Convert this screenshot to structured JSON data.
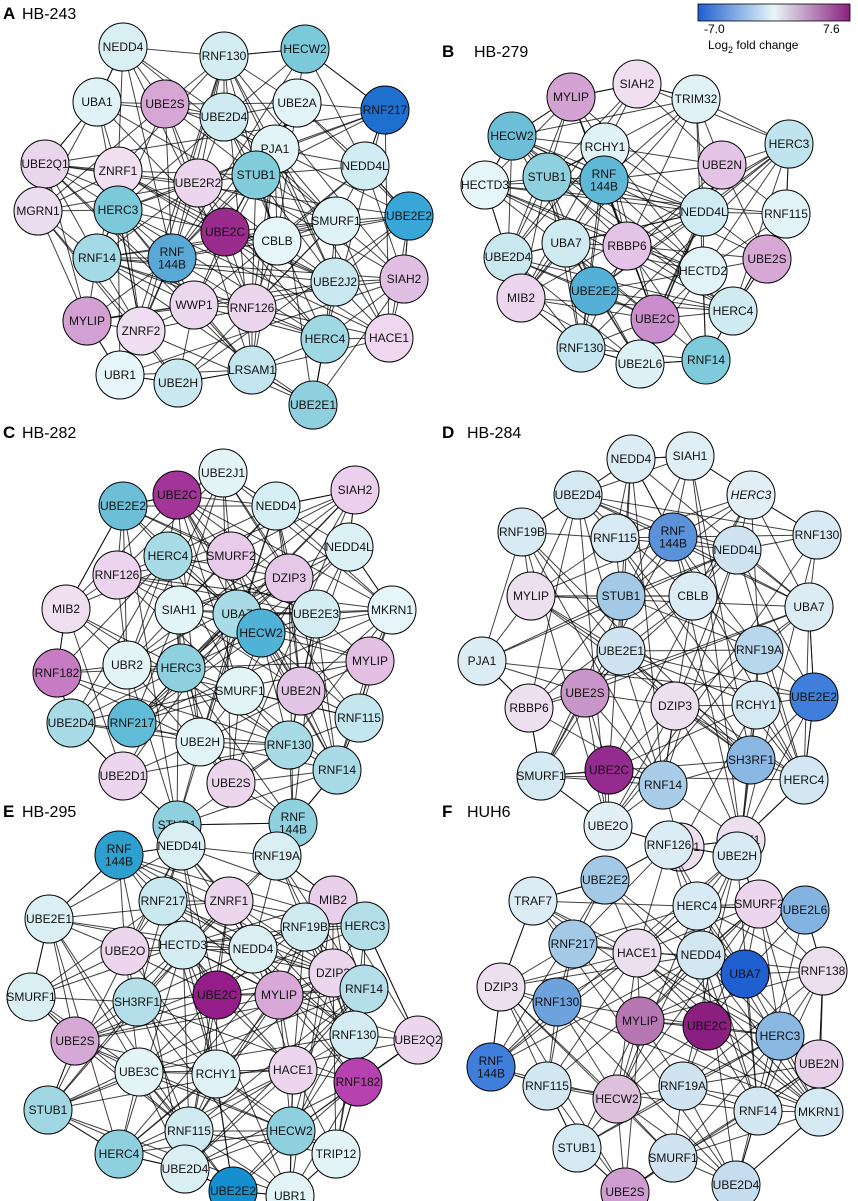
{
  "colorbar": {
    "min": "-7.0",
    "max": "7.6",
    "label_prefix": "Log",
    "label_sub": "2",
    "label_suffix": " fold change",
    "colors": [
      "#1f5fcf",
      "#e8f6f8",
      "#8a1f7f"
    ]
  },
  "panels": [
    {
      "letter": "A",
      "title": "HB-243",
      "nodes": [
        {
          "label": "NEDD4",
          "c": "#d9eff4"
        },
        {
          "label": "RNF130",
          "c": "#d3edf2"
        },
        {
          "label": "HECW2",
          "c": "#7ccad9"
        },
        {
          "label": "RNF217",
          "c": "#1f6fcf"
        },
        {
          "label": "UBA1",
          "c": "#dff2f6"
        },
        {
          "label": "UBE2S",
          "c": "#d6a6d4"
        },
        {
          "label": "UBE2D4",
          "c": "#ceebf1"
        },
        {
          "label": "UBE2A",
          "c": "#e3f4f7"
        },
        {
          "label": "UBE2Q1",
          "c": "#e9d6ec"
        },
        {
          "label": "ZNRF1",
          "c": "#f0e0f1"
        },
        {
          "label": "PJA1",
          "c": "#e3f4f7"
        },
        {
          "label": "NEDD4L",
          "c": "#d1ecf2"
        },
        {
          "label": "UBE2R2",
          "c": "#ecd6ee"
        },
        {
          "label": "STUB1",
          "c": "#82cddb"
        },
        {
          "label": "MGRN1",
          "c": "#ecdcef"
        },
        {
          "label": "HERC3",
          "c": "#7ccad9"
        },
        {
          "label": "UBE2C",
          "c": "#9a2c8e"
        },
        {
          "label": "CBLB",
          "c": "#e6f5f8"
        },
        {
          "label": "SMURF1",
          "c": "#dff2f6"
        },
        {
          "label": "UBE2E2",
          "c": "#38a6d6"
        },
        {
          "label": "RNF14",
          "c": "#a4dae5"
        },
        {
          "label": "RNF\n144B",
          "c": "#5aa8d6"
        },
        {
          "label": "UBE2J2",
          "c": "#c9e8f0"
        },
        {
          "label": "SIAH2",
          "c": "#e0bfe2"
        },
        {
          "label": "WWP1",
          "c": "#ecd8ee"
        },
        {
          "label": "RNF126",
          "c": "#ecd6ee"
        },
        {
          "label": "MYLIP",
          "c": "#d2a0d2"
        },
        {
          "label": "ZNRF2",
          "c": "#efdef1"
        },
        {
          "label": "HERC4",
          "c": "#9ed8e3"
        },
        {
          "label": "HACE1",
          "c": "#efd8ef"
        },
        {
          "label": "UBR1",
          "c": "#e6f5f8"
        },
        {
          "label": "UBE2H",
          "c": "#c9e8f0"
        },
        {
          "label": "LRSAM1",
          "c": "#c3e5ee"
        },
        {
          "label": "UBE2E1",
          "c": "#8fd0df"
        }
      ]
    },
    {
      "letter": "B",
      "title": "HB-279",
      "nodes": [
        {
          "label": "SIAH2",
          "c": "#efdff1"
        },
        {
          "label": "MYLIP",
          "c": "#d3a2d3"
        },
        {
          "label": "TRIM32",
          "c": "#e0f2f6"
        },
        {
          "label": "HECW2",
          "c": "#6cbfd6"
        },
        {
          "label": "RCHY1",
          "c": "#dff2f6"
        },
        {
          "label": "HERC3",
          "c": "#bfe4ed"
        },
        {
          "label": "HECTD3",
          "c": "#e5f5f8"
        },
        {
          "label": "STUB1",
          "c": "#8fd0df"
        },
        {
          "label": "RNF\n144B",
          "c": "#5fb8d6"
        },
        {
          "label": "UBE2N",
          "c": "#e4c4e6"
        },
        {
          "label": "NEDD4L",
          "c": "#d0ecf2"
        },
        {
          "label": "RNF115",
          "c": "#e2f3f7"
        },
        {
          "label": "UBE2D4",
          "c": "#c9e8f0"
        },
        {
          "label": "UBA7",
          "c": "#cfebf1"
        },
        {
          "label": "RBBP6",
          "c": "#e4c4e6"
        },
        {
          "label": "HECTD2",
          "c": "#e2f3f7"
        },
        {
          "label": "UBE2S",
          "c": "#d7a8d6"
        },
        {
          "label": "MIB2",
          "c": "#ecd6ee"
        },
        {
          "label": "UBE2E2",
          "c": "#54b0d6"
        },
        {
          "label": "UBE2C",
          "c": "#c98ecb"
        },
        {
          "label": "HERC4",
          "c": "#cfebf1"
        },
        {
          "label": "RNF130",
          "c": "#c4e6ee"
        },
        {
          "label": "UBE2L6",
          "c": "#dcf1f5"
        },
        {
          "label": "RNF14",
          "c": "#7fcbdb"
        }
      ]
    },
    {
      "letter": "C",
      "title": "HB-282",
      "nodes": [
        {
          "label": "UBE2J1",
          "c": "#e3f4f7"
        },
        {
          "label": "UBE2C",
          "c": "#a33598"
        },
        {
          "label": "SIAH2",
          "c": "#ebcfec"
        },
        {
          "label": "UBE2E2",
          "c": "#6cbfd6"
        },
        {
          "label": "NEDD4",
          "c": "#d6eff4"
        },
        {
          "label": "HERC4",
          "c": "#a8dbe5"
        },
        {
          "label": "SMURF2",
          "c": "#e7cbe9"
        },
        {
          "label": "NEDD4L",
          "c": "#dcf1f5"
        },
        {
          "label": "RNF126",
          "c": "#ecd4ee"
        },
        {
          "label": "DZIP3",
          "c": "#e5c8e8"
        },
        {
          "label": "MIB2",
          "c": "#efdff1"
        },
        {
          "label": "SIAH1",
          "c": "#e3f4f7"
        },
        {
          "label": "UBA7",
          "c": "#a8dbe5"
        },
        {
          "label": "HECW2",
          "c": "#4fb2d6"
        },
        {
          "label": "UBE2E3",
          "c": "#d3edf2"
        },
        {
          "label": "MKRN1",
          "c": "#e6f5f8"
        },
        {
          "label": "RNF182",
          "c": "#c67bc3"
        },
        {
          "label": "UBR2",
          "c": "#e3f4f7"
        },
        {
          "label": "HERC3",
          "c": "#8fd0df"
        },
        {
          "label": "MYLIP",
          "c": "#e2bfe3"
        },
        {
          "label": "SMURF1",
          "c": "#e3f4f7"
        },
        {
          "label": "UBE2N",
          "c": "#e3c5e6"
        },
        {
          "label": "UBE2D4",
          "c": "#a8dbe5"
        },
        {
          "label": "RNF217",
          "c": "#60bbd6"
        },
        {
          "label": "UBE2H",
          "c": "#e3f4f7"
        },
        {
          "label": "RNF130",
          "c": "#a8dbe5"
        },
        {
          "label": "RNF115",
          "c": "#c4e6ee"
        },
        {
          "label": "UBE2D1",
          "c": "#ecd6ee"
        },
        {
          "label": "UBE2S",
          "c": "#ecd6ee"
        },
        {
          "label": "RNF14",
          "c": "#a8dbe5"
        },
        {
          "label": "STUB1",
          "c": "#8fd0df"
        },
        {
          "label": "RNF\n144B",
          "c": "#8fd0df"
        }
      ]
    },
    {
      "letter": "D",
      "title": "HB-284",
      "nodes": [
        {
          "label": "NEDD4",
          "c": "#dcecf5"
        },
        {
          "label": "SIAH1",
          "c": "#e0eef6"
        },
        {
          "label": "UBE2D4",
          "c": "#d5e9f3"
        },
        {
          "label": "HERC3",
          "c": "#e2eff6",
          "italic": true
        },
        {
          "label": "RNF19B",
          "c": "#d8eaf4"
        },
        {
          "label": "RNF115",
          "c": "#d8eaf4"
        },
        {
          "label": "RNF\n144B",
          "c": "#5a93d9"
        },
        {
          "label": "NEDD4L",
          "c": "#cfe3f1"
        },
        {
          "label": "RNF130",
          "c": "#d8eaf4"
        },
        {
          "label": "MYLIP",
          "c": "#eddff0"
        },
        {
          "label": "STUB1",
          "c": "#a3c9e6"
        },
        {
          "label": "CBLB",
          "c": "#dcecf5"
        },
        {
          "label": "UBA7",
          "c": "#dcecf5"
        },
        {
          "label": "PJA1",
          "c": "#dcecf5"
        },
        {
          "label": "UBE2E1",
          "c": "#cfe3f1"
        },
        {
          "label": "RNF19A",
          "c": "#b9d7ec"
        },
        {
          "label": "UBE2S",
          "c": "#c896c8"
        },
        {
          "label": "RBBP6",
          "c": "#eddff0"
        },
        {
          "label": "DZIP3",
          "c": "#ecdfef"
        },
        {
          "label": "RCHY1",
          "c": "#d5e9f3"
        },
        {
          "label": "UBE2E2",
          "c": "#3f7fdb"
        },
        {
          "label": "UBE2C",
          "c": "#942b8f"
        },
        {
          "label": "SH3RF1",
          "c": "#8ab8e2"
        },
        {
          "label": "SMURF1",
          "c": "#d5e9f3"
        },
        {
          "label": "RNF14",
          "c": "#a9cce8"
        },
        {
          "label": "HERC4",
          "c": "#d3e7f2"
        },
        {
          "label": "UBE2O",
          "c": "#e3eff6"
        },
        {
          "label": "HACE1",
          "c": "#ecdfef"
        },
        {
          "label": "ZNRF1",
          "c": "#ece0ef"
        }
      ]
    },
    {
      "letter": "E",
      "title": "HB-295",
      "nodes": [
        {
          "label": "RNF\n144B",
          "c": "#2ea0d0"
        },
        {
          "label": "NEDD4L",
          "c": "#d9eff4"
        },
        {
          "label": "RNF19A",
          "c": "#d9eff4"
        },
        {
          "label": "RNF217",
          "c": "#c9e8f0"
        },
        {
          "label": "ZNRF1",
          "c": "#ecd6ee"
        },
        {
          "label": "MIB2",
          "c": "#e9d0ea"
        },
        {
          "label": "UBE2E1",
          "c": "#d9eff4"
        },
        {
          "label": "RNF19B",
          "c": "#cfebf1"
        },
        {
          "label": "HERC3",
          "c": "#b4dfe8"
        },
        {
          "label": "UBE2O",
          "c": "#ecd6ee"
        },
        {
          "label": "HECTD3",
          "c": "#d3edf2"
        },
        {
          "label": "NEDD4",
          "c": "#d9eff4"
        },
        {
          "label": "DZIP3",
          "c": "#ecd6ee"
        },
        {
          "label": "SMURF1",
          "c": "#d9eff4"
        },
        {
          "label": "SH3RF1",
          "c": "#b4dfe8"
        },
        {
          "label": "UBE2C",
          "c": "#941d8a"
        },
        {
          "label": "MYLIP",
          "c": "#d8a8d8"
        },
        {
          "label": "RNF14",
          "c": "#b4dfe8"
        },
        {
          "label": "UBE2S",
          "c": "#d5a8d5"
        },
        {
          "label": "RNF130",
          "c": "#d3edf2"
        },
        {
          "label": "UBE2Q2",
          "c": "#ecd6ee"
        },
        {
          "label": "UBE3C",
          "c": "#e3f4f7"
        },
        {
          "label": "RCHY1",
          "c": "#dff2f6"
        },
        {
          "label": "HACE1",
          "c": "#ecd6ee"
        },
        {
          "label": "STUB1",
          "c": "#a0d7e3"
        },
        {
          "label": "RNF182",
          "c": "#b642b0"
        },
        {
          "label": "RNF115",
          "c": "#cfebf1"
        },
        {
          "label": "HECW2",
          "c": "#8fd0df"
        },
        {
          "label": "HERC4",
          "c": "#8fd0df"
        },
        {
          "label": "UBE2D4",
          "c": "#d9eff4"
        },
        {
          "label": "TRIP12",
          "c": "#e3f4f7"
        },
        {
          "label": "UBE2E2",
          "c": "#148fcf"
        },
        {
          "label": "UBR1",
          "c": "#e3f4f7"
        }
      ]
    },
    {
      "letter": "F",
      "title": "HUH6",
      "nodes": [
        {
          "label": "RNF126",
          "c": "#dcecf5"
        },
        {
          "label": "UBE2H",
          "c": "#d8eaf4"
        },
        {
          "label": "UBE2E2",
          "c": "#a3c9e6"
        },
        {
          "label": "TRAF7",
          "c": "#dcecf5"
        },
        {
          "label": "HERC4",
          "c": "#d8eaf4"
        },
        {
          "label": "SMURF2",
          "c": "#ecd6ee"
        },
        {
          "label": "UBE2L6",
          "c": "#83b3e0"
        },
        {
          "label": "RNF217",
          "c": "#a3c9e6"
        },
        {
          "label": "HACE1",
          "c": "#ecdfef"
        },
        {
          "label": "NEDD4",
          "c": "#d3e7f2"
        },
        {
          "label": "DZIP3",
          "c": "#eddff0"
        },
        {
          "label": "UBA7",
          "c": "#1f5fcf"
        },
        {
          "label": "RNF138",
          "c": "#ece0ef"
        },
        {
          "label": "RNF130",
          "c": "#6ea2dc"
        },
        {
          "label": "MYLIP",
          "c": "#b677b3"
        },
        {
          "label": "UBE2C",
          "c": "#8a1f7f"
        },
        {
          "label": "HERC3",
          "c": "#8ab8e2"
        },
        {
          "label": "UBE2N",
          "c": "#e7d2ea"
        },
        {
          "label": "RNF\n144B",
          "c": "#3f7fdb"
        },
        {
          "label": "RNF115",
          "c": "#d3e7f2"
        },
        {
          "label": "HECW2",
          "c": "#dcc0dc"
        },
        {
          "label": "RNF19A",
          "c": "#cfe3f1"
        },
        {
          "label": "RNF14",
          "c": "#d3e7f2"
        },
        {
          "label": "MKRN1",
          "c": "#d5e9f3"
        },
        {
          "label": "STUB1",
          "c": "#d5e9f3"
        },
        {
          "label": "SMURF1",
          "c": "#cfe3f1"
        },
        {
          "label": "UBE2S",
          "c": "#cf9dcf"
        },
        {
          "label": "UBE2D4",
          "c": "#c6ddf0"
        }
      ]
    }
  ]
}
